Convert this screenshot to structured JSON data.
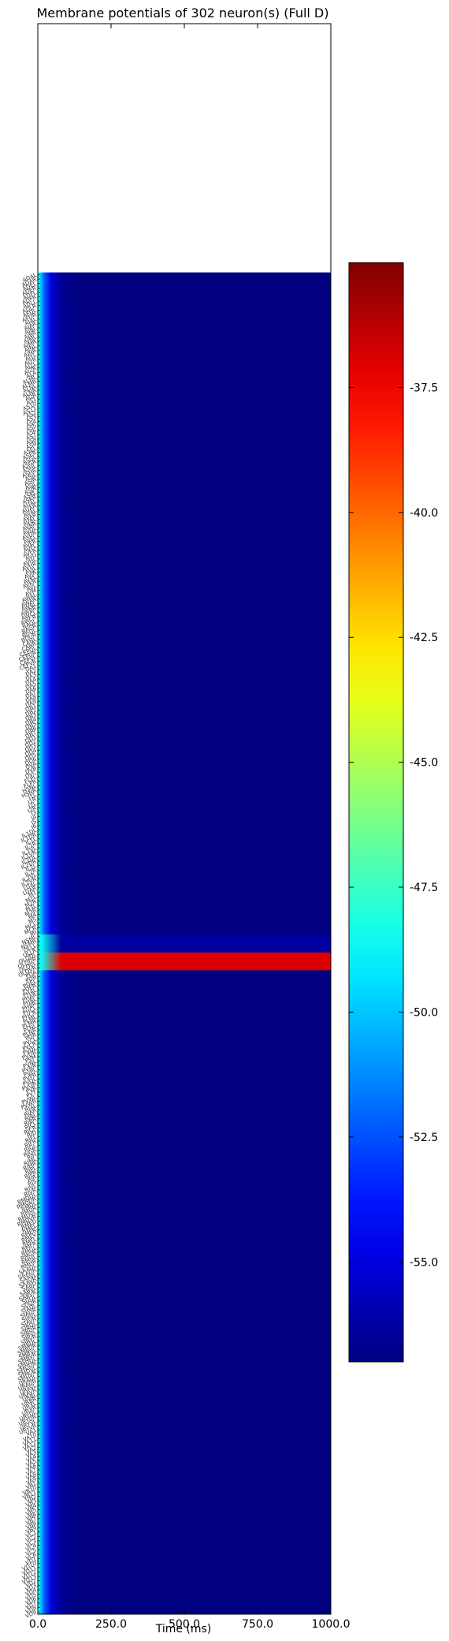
{
  "chart_data": {
    "type": "heatmap",
    "title": "Membrane potentials of 302 neuron(s) (Full D)",
    "xlabel": "Time (ms)",
    "ylabel": "",
    "xlim": [
      0,
      1000
    ],
    "x_ticks": [
      "0.0",
      "250.0",
      "500.0",
      "750.0",
      "1000.0"
    ],
    "x_tick_values": [
      0,
      250,
      500,
      750,
      1000
    ],
    "n_neurons": 302,
    "extra_empty_rows_above": 56,
    "colormap": "jet",
    "color_range": [
      -57.0,
      -35.0
    ],
    "colorbar_ticks": [
      "-37.5",
      "-40.0",
      "-42.5",
      "-45.0",
      "-47.5",
      "-50.0",
      "-52.5",
      "-55.0"
    ],
    "colorbar_tick_values": [
      -37.5,
      -40.0,
      -42.5,
      -45.0,
      -47.5,
      -50.0,
      -52.5,
      -55.0
    ],
    "baseline_potential": -57.0,
    "onset_profile": [
      {
        "t": 0,
        "v": -48.5
      },
      {
        "t": 5,
        "v": -48.5
      },
      {
        "t": 12,
        "v": -50.5
      },
      {
        "t": 25,
        "v": -52.5
      },
      {
        "t": 45,
        "v": -55.0
      },
      {
        "t": 80,
        "v": -56.5
      },
      {
        "t": 130,
        "v": -57.0
      },
      {
        "t": 1000,
        "v": -57.0
      }
    ],
    "highlighted_rows": [
      {
        "row": 153,
        "label": "M4",
        "v": -37.0
      },
      {
        "row": 154,
        "label": "M5",
        "v": -37.0
      },
      {
        "row": 155,
        "label": "NSML",
        "v": -37.0
      },
      {
        "row": 156,
        "label": "NSMR",
        "v": -37.0
      },
      {
        "row": 149,
        "label": "M1",
        "v": -56.3
      },
      {
        "row": 150,
        "label": "M2L",
        "v": -56.3
      },
      {
        "row": 151,
        "label": "M2R",
        "v": -56.3
      },
      {
        "row": 152,
        "label": "M3L",
        "v": -56.3
      }
    ],
    "neuron_labels": [
      "ADAL",
      "ADAR",
      "ADEL",
      "ADER",
      "ADFL",
      "ADFR",
      "ADLL",
      "ADLR",
      "AFDL",
      "AFDR",
      "AIAL",
      "AIAR",
      "AIBL",
      "AIBR",
      "AIML",
      "AIMR",
      "AINL",
      "AINR",
      "AIYL",
      "AIYR",
      "AIZL",
      "AIZR",
      "ALA",
      "ALML",
      "ALMR",
      "ALNL",
      "ALNR",
      "AQR",
      "AS1",
      "AS10",
      "AS11",
      "AS2",
      "AS3",
      "AS4",
      "AS5",
      "AS6",
      "AS7",
      "AS8",
      "AS9",
      "ASEL",
      "ASER",
      "ASGL",
      "ASGR",
      "ASHL",
      "ASHR",
      "ASIL",
      "ASIR",
      "ASJL",
      "ASJR",
      "ASKL",
      "ASKR",
      "AUAL",
      "AUAR",
      "AVAL",
      "AVAR",
      "AVBL",
      "AVBR",
      "AVDL",
      "AVDR",
      "AVEL",
      "AVER",
      "AVFL",
      "AVFR",
      "AVG",
      "AVHL",
      "AVHR",
      "AVJL",
      "AVJR",
      "AVKL",
      "AVKR",
      "AVL",
      "AVM",
      "AWAL",
      "AWAR",
      "AWBL",
      "AWBR",
      "AWCL",
      "AWCR",
      "BAGL",
      "BAGR",
      "BDUL",
      "BDUR",
      "CANL",
      "CANR",
      "CEPDL",
      "CEPDR",
      "CEPVL",
      "CEPVR",
      "DA1",
      "DA2",
      "DA3",
      "DA4",
      "DA5",
      "DA6",
      "DA7",
      "DA8",
      "DA9",
      "DB1",
      "DB2",
      "DB3",
      "DB4",
      "DB5",
      "DB6",
      "DB7",
      "DD1",
      "DD2",
      "DD3",
      "DD4",
      "DD5",
      "DD6",
      "DVA",
      "DVB",
      "DVC",
      "FLPL",
      "FLPR",
      "HSNL",
      "HSNR",
      "I1L",
      "I1R",
      "I2L",
      "I2R",
      "I3",
      "I4",
      "I5",
      "I6",
      "IL1DL",
      "IL1DR",
      "IL1L",
      "IL1R",
      "IL1VL",
      "IL1VR",
      "IL2DL",
      "IL2DR",
      "IL2L",
      "IL2R",
      "IL2VL",
      "IL2VR",
      "LUAL",
      "LUAR",
      "M1",
      "M2L",
      "M2R",
      "M3L",
      "M3R",
      "M4",
      "M5",
      "MCL",
      "MCR",
      "MI",
      "NSML",
      "NSMR",
      "OLLL",
      "OLLR",
      "OLQDL",
      "OLQDR",
      "OLQVL",
      "OLQVR",
      "PDA",
      "PDB",
      "PDEL",
      "PDER",
      "PHAL",
      "PHAR",
      "PHBL",
      "PHBR",
      "PHCL",
      "PHCR",
      "PLML",
      "PLMR",
      "PLNL",
      "PLNR",
      "PQR",
      "PVCL",
      "PVCR",
      "PVDL",
      "PVDR",
      "PVM",
      "PVNL",
      "PVNR",
      "PVPL",
      "PVPR",
      "PVQL",
      "PVQR",
      "PVR",
      "PVT",
      "PVWL",
      "PVWR",
      "RIAL",
      "RIAR",
      "RIBL",
      "RIBR",
      "RICL",
      "RICR",
      "RID",
      "RIFL",
      "RIFR",
      "RIGL",
      "RIGR",
      "RIH",
      "RIML",
      "RIMR",
      "RIPL",
      "RIPR",
      "RIR",
      "RIS",
      "RIVL",
      "RIVR",
      "RMDDL",
      "RMDDR",
      "RMDL",
      "RMDR",
      "RMDVL",
      "RMDVR",
      "RMED",
      "RMEL",
      "RMER",
      "RMEV",
      "RMFL",
      "RMFR",
      "RMGL",
      "RMGR",
      "RMHL",
      "RMHR",
      "SAADL",
      "SAADR",
      "SAAVL",
      "SAAVR",
      "SABD",
      "SABVL",
      "SABVR",
      "SDQL",
      "SDQR",
      "SIADL",
      "SIADR",
      "SIAVL",
      "SIAVR",
      "SIBDL",
      "SIBDR",
      "SIBVL",
      "SIBVR",
      "SMBDL",
      "SMBDR",
      "SMBVL",
      "SMBVR",
      "SMDDL",
      "SMDDR",
      "SMDVL",
      "SMDVR",
      "URADL",
      "URADR",
      "URAVL",
      "URAVR",
      "URBL",
      "URBR",
      "URXL",
      "URXR",
      "URYDL",
      "URYDR",
      "URYVL",
      "URYVR",
      "VA1",
      "VA10",
      "VA11",
      "VA12",
      "VA2",
      "VA3",
      "VA4",
      "VA5",
      "VA6",
      "VA7",
      "VA8",
      "VA9",
      "VB1",
      "VB10",
      "VB11",
      "VB2",
      "VB3",
      "VB4",
      "VB5",
      "VB6",
      "VB7",
      "VB8",
      "VB9",
      "VC1",
      "VC2",
      "VC3",
      "VC4",
      "VC5",
      "VC6",
      "VD1",
      "VD10",
      "VD11",
      "VD12",
      "VD13",
      "VD2",
      "VD3",
      "VD4",
      "VD5",
      "VD6",
      "VD7",
      "VD8",
      "VD9"
    ]
  }
}
